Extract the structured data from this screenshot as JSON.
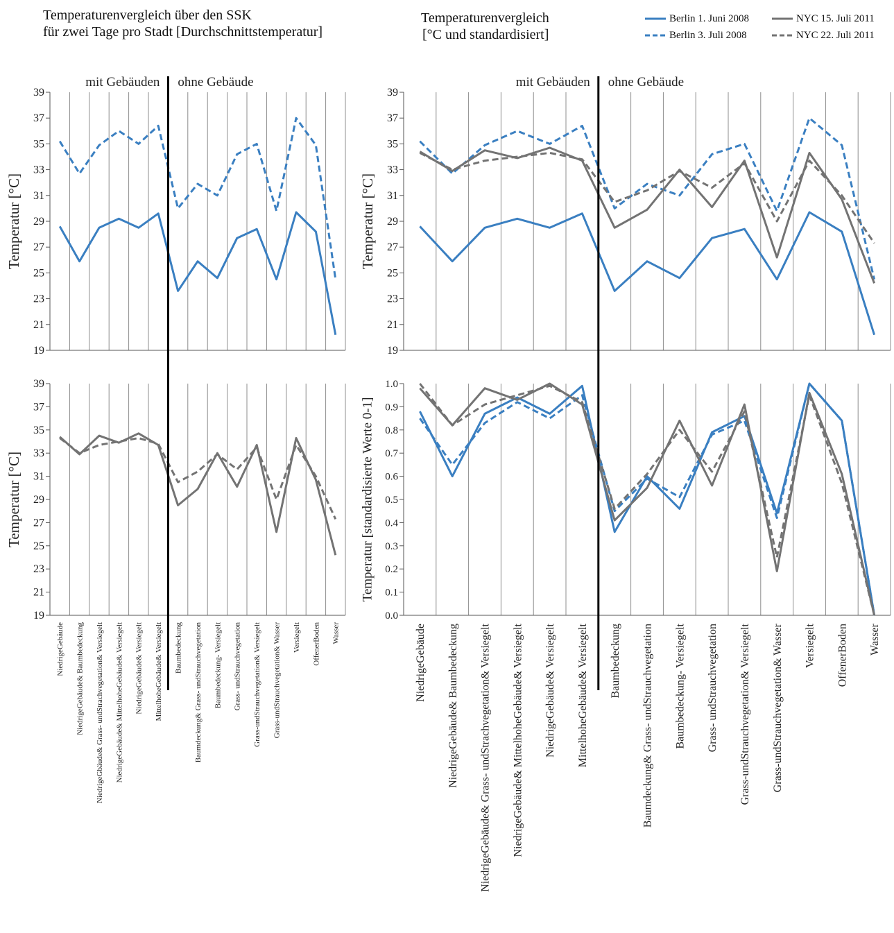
{
  "header": {
    "left_line1": "Temperaturenvergleich über den SSK",
    "left_line2": "für zwei Tage pro Stadt [Durchschnittstemperatur]",
    "right_line1": "Temperaturenvergleich",
    "right_line2": "[°C und standardisiert]"
  },
  "colors": {
    "berlin": "#3a7fc1",
    "nyc": "#737373",
    "grid": "#8c8c8c",
    "divider": "#000000"
  },
  "legend": [
    {
      "label": "Berlin 1. Juni 2008",
      "color": "#3a7fc1",
      "dash": false
    },
    {
      "label": "Berlin 3. Juli 2008",
      "color": "#3a7fc1",
      "dash": true
    },
    {
      "label": "NYC 15. Juli 2011",
      "color": "#737373",
      "dash": false
    },
    {
      "label": "NYC 22. Juli 2011",
      "color": "#737373",
      "dash": true
    }
  ],
  "chart_data": [
    {
      "id": "top-left",
      "type": "line",
      "ylabel": "Temperatur [°C]",
      "ylim": [
        19,
        39
      ],
      "yticks": [
        "19",
        "21",
        "23",
        "25",
        "27",
        "29",
        "31",
        "33",
        "35",
        "37",
        "39"
      ],
      "section_labels": [
        "mit Gebäuden",
        "ohne Gebäude"
      ],
      "series": [
        {
          "name": "Berlin 1. Juni 2008",
          "style": "solid",
          "color": "#3a7fc1",
          "values": [
            28.6,
            25.9,
            28.5,
            29.2,
            28.5,
            29.6,
            23.6,
            25.9,
            24.6,
            27.7,
            28.4,
            24.5,
            29.7,
            28.2,
            20.2
          ]
        },
        {
          "name": "Berlin 3. Juli 2008",
          "style": "dash",
          "color": "#3a7fc1",
          "values": [
            35.2,
            32.7,
            34.9,
            36.0,
            35.0,
            36.4,
            30.0,
            31.9,
            31.0,
            34.2,
            35.0,
            29.8,
            37.0,
            34.9,
            24.5
          ]
        }
      ]
    },
    {
      "id": "bottom-left",
      "type": "line",
      "ylabel": "Temperatur [°C]",
      "ylim": [
        19,
        39
      ],
      "yticks": [
        "19",
        "21",
        "23",
        "25",
        "27",
        "29",
        "31",
        "33",
        "35",
        "37",
        "39"
      ],
      "series": [
        {
          "name": "NYC 15. Juli 2011",
          "style": "solid",
          "color": "#737373",
          "values": [
            34.4,
            32.9,
            34.5,
            33.9,
            34.7,
            33.7,
            28.5,
            29.9,
            33.0,
            30.1,
            33.7,
            26.2,
            34.3,
            30.7,
            24.2
          ]
        },
        {
          "name": "NYC 22. Juli 2011",
          "style": "dash",
          "color": "#737373",
          "values": [
            34.3,
            33.0,
            33.7,
            34.0,
            34.3,
            33.8,
            30.5,
            31.4,
            32.9,
            31.6,
            33.5,
            29.0,
            33.7,
            31.0,
            27.3
          ]
        }
      ],
      "categories": [
        "NiedrigeGebäude",
        "NiedrigeGebäude& Baumbedeckung",
        "NiedrigeGbäude& Grass- undStrachvegetation& Versiegelt",
        "NiedrigeGebäude& MittelhoheGebäude& Versiegelt",
        "NiedrigeGebäude& Versiegelt",
        "MittelhoheGebäude& Versiegelt",
        "Baumbedeckung",
        "Baumdeckung& Grass- undStrauchvegetation",
        "Baumbedeckung- Versiegelt",
        "Grass- undStrauchvegetation",
        "Grass-undStrauchvegetation& Versiegelt",
        "Grass-undStrauchvegetation& Wasser",
        "Versiegelt",
        "OffenerBoden",
        "Wasser"
      ]
    },
    {
      "id": "top-right",
      "type": "line",
      "ylabel": "Temperatur [°C]",
      "ylim": [
        19,
        39
      ],
      "yticks": [
        "19",
        "21",
        "23",
        "25",
        "27",
        "29",
        "31",
        "33",
        "35",
        "37",
        "39"
      ],
      "section_labels": [
        "mit Gebäuden",
        "ohne Gebäude"
      ],
      "series": [
        {
          "name": "Berlin 1. Juni 2008",
          "style": "solid",
          "color": "#3a7fc1",
          "values": [
            28.6,
            25.9,
            28.5,
            29.2,
            28.5,
            29.6,
            23.6,
            25.9,
            24.6,
            27.7,
            28.4,
            24.5,
            29.7,
            28.2,
            20.2
          ]
        },
        {
          "name": "Berlin 3. Juli 2008",
          "style": "dash",
          "color": "#3a7fc1",
          "values": [
            35.2,
            32.7,
            34.9,
            36.0,
            35.0,
            36.4,
            30.0,
            31.9,
            31.0,
            34.2,
            35.0,
            29.8,
            37.0,
            34.9,
            24.5
          ]
        },
        {
          "name": "NYC 15. Juli 2011",
          "style": "solid",
          "color": "#737373",
          "values": [
            34.4,
            32.9,
            34.5,
            33.9,
            34.7,
            33.7,
            28.5,
            29.9,
            33.0,
            30.1,
            33.7,
            26.2,
            34.3,
            30.7,
            24.2
          ]
        },
        {
          "name": "NYC 22. Juli 2011",
          "style": "dash",
          "color": "#737373",
          "values": [
            34.3,
            33.0,
            33.7,
            34.0,
            34.3,
            33.8,
            30.5,
            31.4,
            32.9,
            31.6,
            33.5,
            29.0,
            33.7,
            31.0,
            27.3
          ]
        }
      ]
    },
    {
      "id": "bottom-right",
      "type": "line",
      "ylabel": "Temperatur [standardisierte Werte 0-1]",
      "ylim": [
        0,
        1
      ],
      "yticks": [
        "0.0",
        "0.1",
        "0.2",
        "0.3",
        "0.4",
        "0.5",
        "0.6",
        "0.7",
        "0.8",
        "0.9",
        "1.0"
      ],
      "series": [
        {
          "name": "Berlin 1. Juni 2008",
          "style": "solid",
          "color": "#3a7fc1",
          "values": [
            0.88,
            0.6,
            0.87,
            0.94,
            0.87,
            0.99,
            0.36,
            0.6,
            0.46,
            0.79,
            0.86,
            0.44,
            1.0,
            0.84,
            0.0
          ]
        },
        {
          "name": "Berlin 3. Juli 2008",
          "style": "dash",
          "color": "#3a7fc1",
          "values": [
            0.85,
            0.65,
            0.83,
            0.92,
            0.85,
            0.95,
            0.45,
            0.59,
            0.51,
            0.78,
            0.84,
            0.42,
            1.0,
            0.84,
            0.0
          ]
        },
        {
          "name": "NYC 15. Juli 2011",
          "style": "solid",
          "color": "#737373",
          "values": [
            0.98,
            0.82,
            0.98,
            0.93,
            1.0,
            0.91,
            0.41,
            0.55,
            0.84,
            0.56,
            0.91,
            0.19,
            0.96,
            0.61,
            0.0
          ]
        },
        {
          "name": "NYC 22. Juli 2011",
          "style": "dash",
          "color": "#737373",
          "values": [
            1.0,
            0.82,
            0.91,
            0.95,
            0.99,
            0.92,
            0.46,
            0.61,
            0.8,
            0.62,
            0.88,
            0.25,
            0.95,
            0.57,
            0.0
          ]
        }
      ],
      "categories": [
        "NiedrigeGebäude",
        "NiedrigeGebäude& Baumbedeckung",
        "NiedrigeGebäude& Grass- undStrachvegetation& Versiegelt",
        "NiedrigeGebäude& MittelhoheGebäude& Versiegelt",
        "NiedrigeGebäude& Versiegelt",
        "MittelhoheGebäude& Versiegelt",
        "Baumbedeckung",
        "Baumdeckung& Grass- undStrauchvegetation",
        "Baumbedeckung- Versiegelt",
        "Grass- undStrauchvegetation",
        "Grass-undStrauchvegetation& Versiegelt",
        "Grass-undStrauchvegetation& Wasser",
        "Versiegelt",
        "OffenerBoden",
        "Wasser"
      ]
    }
  ]
}
